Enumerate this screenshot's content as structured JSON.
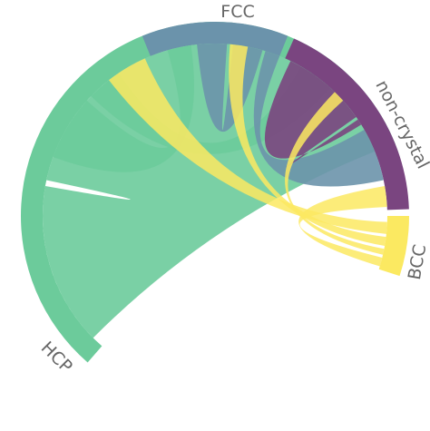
{
  "chart_data": {
    "type": "chord",
    "groups": [
      {
        "name": "HCP",
        "color": "#6ccb9b"
      },
      {
        "name": "FCC",
        "color": "#6b93ab"
      },
      {
        "name": "non-crystal",
        "color": "#7a4580"
      },
      {
        "name": "BCC",
        "color": "#fbe961"
      }
    ],
    "ribbons": [
      {
        "source": "HCP",
        "target": "HCP",
        "color": "#6ccb9b"
      },
      {
        "source": "HCP",
        "target": "FCC",
        "color": "#6ccb9b"
      },
      {
        "source": "HCP",
        "target": "non-crystal",
        "color": "#6ccb9b"
      },
      {
        "source": "FCC",
        "target": "FCC",
        "color": "#6b93ab"
      },
      {
        "source": "FCC",
        "target": "non-crystal",
        "color": "#6b93ab"
      },
      {
        "source": "non-crystal",
        "target": "non-crystal",
        "color": "#7a4580"
      },
      {
        "source": "BCC",
        "target": "HCP",
        "color": "#fbe961"
      },
      {
        "source": "BCC",
        "target": "FCC",
        "color": "#fbe961"
      },
      {
        "source": "BCC",
        "target": "non-crystal",
        "color": "#fbe961"
      },
      {
        "source": "BCC",
        "target": "BCC",
        "color": "#fbe961"
      }
    ]
  }
}
